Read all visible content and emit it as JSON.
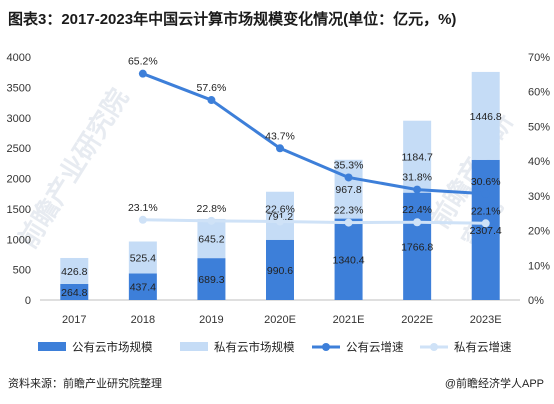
{
  "title": "图表3：2017-2023年中国云计算市场规模变化情况(单位：亿元，%)",
  "source": "资料来源：前瞻产业研究院整理",
  "brand": "@前瞻经济学人APP",
  "watermarks": [
    "前瞻产业研究院",
    "前瞻产业研究院"
  ],
  "chart_data": {
    "type": "bar",
    "stacked": true,
    "categories": [
      "2017",
      "2018",
      "2019",
      "2020E",
      "2021E",
      "2022E",
      "2023E"
    ],
    "series": [
      {
        "name": "公有云市场规模",
        "kind": "bar",
        "axis": "left",
        "color": "#3d7fd9",
        "values": [
          264.8,
          437.4,
          689.3,
          990.6,
          1340.4,
          1766.8,
          2307.4
        ],
        "labels": [
          "264.8",
          "437.4",
          "689.3",
          "990.6",
          "1340.4",
          "1766.8",
          "2307.4"
        ]
      },
      {
        "name": "私有云市场规模",
        "kind": "bar",
        "axis": "left",
        "color": "#c5dcf6",
        "values": [
          426.8,
          525.4,
          645.2,
          791.2,
          967.8,
          1184.7,
          1446.8
        ],
        "labels": [
          "426.8",
          "525.4",
          "645.2",
          "791.2",
          "967.8",
          "1184.7",
          "1446.8"
        ]
      },
      {
        "name": "公有云增速",
        "kind": "line",
        "axis": "right",
        "color": "#3d7fd9",
        "values": [
          null,
          65.2,
          57.6,
          43.7,
          35.3,
          31.8,
          30.6
        ],
        "labels": [
          "",
          "65.2%",
          "57.6%",
          "43.7%",
          "35.3%",
          "31.8%",
          "30.6%"
        ]
      },
      {
        "name": "私有云增速",
        "kind": "line",
        "axis": "right",
        "color": "#cfe2f7",
        "values": [
          null,
          23.1,
          22.8,
          22.6,
          22.3,
          22.4,
          22.1
        ],
        "labels": [
          "",
          "23.1%",
          "22.8%",
          "22.6%",
          "22.3%",
          "22.4%",
          "22.1%"
        ]
      }
    ],
    "ylim_left": [
      0,
      4000
    ],
    "yticks_left": [
      "0",
      "500",
      "1000",
      "1500",
      "2000",
      "2500",
      "3000",
      "3500",
      "4000"
    ],
    "ylim_right": [
      0,
      70
    ],
    "yticks_right": [
      "0%",
      "10%",
      "20%",
      "30%",
      "40%",
      "50%",
      "60%",
      "70%"
    ],
    "legend_position": "bottom",
    "grid": false
  }
}
